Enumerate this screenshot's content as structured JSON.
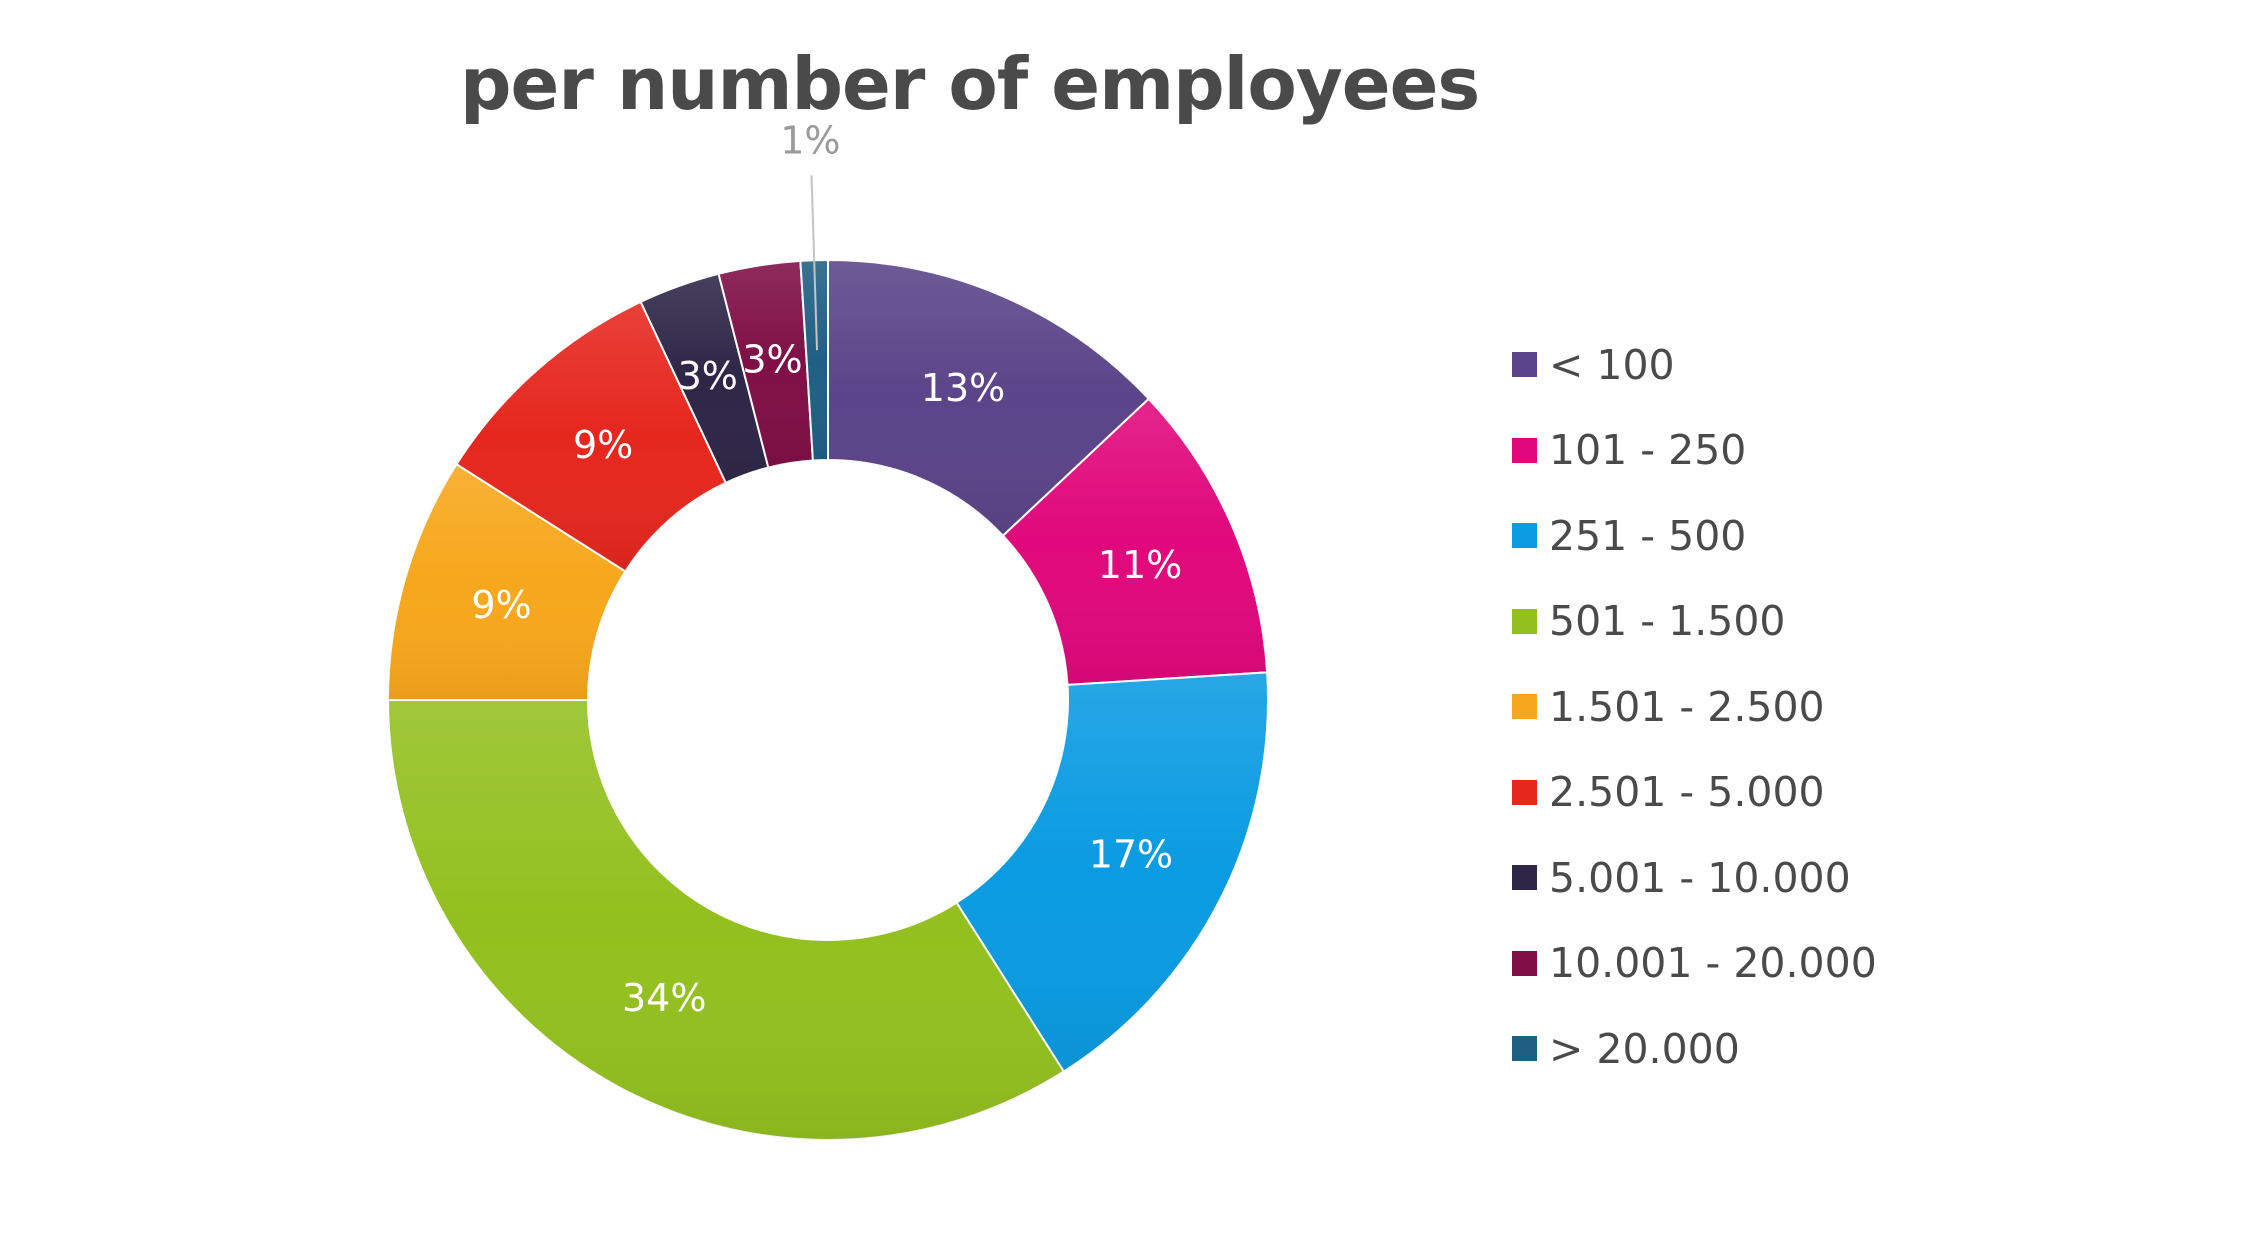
{
  "chart_data": {
    "type": "pie",
    "title": "per number of employees",
    "donut": true,
    "legend_position": "right",
    "categories": [
      "< 100",
      "101 - 250",
      "251 - 500",
      "501 - 1.500",
      "1.501 - 2.500",
      "2.501 - 5.000",
      "5.001 - 10.000",
      "10.001 - 20.000",
      "> 20.000"
    ],
    "values": [
      13,
      11,
      17,
      34,
      9,
      9,
      3,
      3,
      1
    ],
    "labels": [
      "13%",
      "11%",
      "17%",
      "34%",
      "9%",
      "9%",
      "3%",
      "3%",
      "1%"
    ],
    "colors": [
      "#5b4489",
      "#e0087c",
      "#0a9be2",
      "#93c01f",
      "#f7a71c",
      "#e5271e",
      "#2e2647",
      "#7f0f46",
      "#1f5f84"
    ]
  }
}
